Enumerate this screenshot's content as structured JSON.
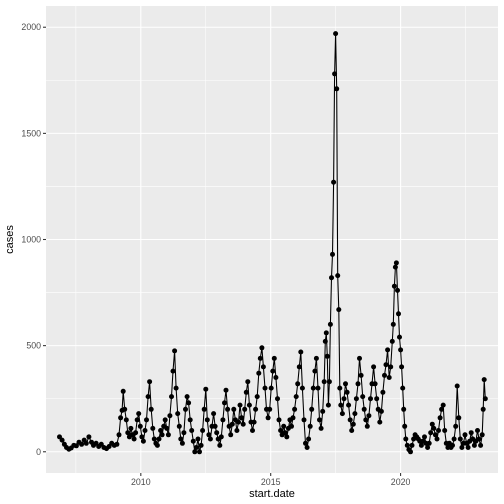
{
  "chart_data": {
    "type": "line",
    "xlabel": "start.date",
    "ylabel": "cases",
    "x_major_ticks": [
      2010,
      2015,
      2020
    ],
    "x_minor_ticks": [
      2007.5,
      2012.5,
      2017.5,
      2022.5
    ],
    "y_major_ticks": [
      0,
      500,
      1000,
      1500,
      2000
    ],
    "y_minor_ticks": [
      250,
      750,
      1250,
      1750
    ],
    "xlim": [
      2006.35,
      2023.75
    ],
    "ylim": [
      -100,
      2100
    ],
    "grid": true,
    "legend": "none",
    "series": [
      {
        "color": "#000000",
        "points": [
          [
            2006.87,
            70
          ],
          [
            2006.97,
            55
          ],
          [
            2007.06,
            35
          ],
          [
            2007.14,
            20
          ],
          [
            2007.23,
            12
          ],
          [
            2007.32,
            18
          ],
          [
            2007.42,
            30
          ],
          [
            2007.52,
            28
          ],
          [
            2007.62,
            45
          ],
          [
            2007.72,
            35
          ],
          [
            2007.82,
            55
          ],
          [
            2007.9,
            40
          ],
          [
            2008.0,
            70
          ],
          [
            2008.1,
            45
          ],
          [
            2008.18,
            30
          ],
          [
            2008.28,
            40
          ],
          [
            2008.38,
            25
          ],
          [
            2008.48,
            35
          ],
          [
            2008.58,
            20
          ],
          [
            2008.68,
            15
          ],
          [
            2008.78,
            25
          ],
          [
            2008.88,
            40
          ],
          [
            2008.98,
            30
          ],
          [
            2009.08,
            35
          ],
          [
            2009.16,
            80
          ],
          [
            2009.22,
            160
          ],
          [
            2009.28,
            195
          ],
          [
            2009.32,
            285
          ],
          [
            2009.38,
            200
          ],
          [
            2009.44,
            150
          ],
          [
            2009.5,
            90
          ],
          [
            2009.56,
            70
          ],
          [
            2009.62,
            110
          ],
          [
            2009.68,
            80
          ],
          [
            2009.74,
            60
          ],
          [
            2009.8,
            90
          ],
          [
            2009.86,
            150
          ],
          [
            2009.92,
            180
          ],
          [
            2009.98,
            120
          ],
          [
            2010.04,
            70
          ],
          [
            2010.1,
            50
          ],
          [
            2010.16,
            100
          ],
          [
            2010.22,
            150
          ],
          [
            2010.28,
            260
          ],
          [
            2010.34,
            330
          ],
          [
            2010.4,
            200
          ],
          [
            2010.46,
            110
          ],
          [
            2010.52,
            60
          ],
          [
            2010.58,
            40
          ],
          [
            2010.64,
            30
          ],
          [
            2010.7,
            60
          ],
          [
            2010.76,
            100
          ],
          [
            2010.82,
            80
          ],
          [
            2010.88,
            120
          ],
          [
            2010.94,
            150
          ],
          [
            2011.0,
            110
          ],
          [
            2011.06,
            80
          ],
          [
            2011.12,
            170
          ],
          [
            2011.18,
            260
          ],
          [
            2011.24,
            380
          ],
          [
            2011.3,
            475
          ],
          [
            2011.36,
            300
          ],
          [
            2011.42,
            180
          ],
          [
            2011.48,
            120
          ],
          [
            2011.54,
            60
          ],
          [
            2011.6,
            40
          ],
          [
            2011.66,
            90
          ],
          [
            2011.72,
            200
          ],
          [
            2011.78,
            260
          ],
          [
            2011.84,
            230
          ],
          [
            2011.9,
            150
          ],
          [
            2011.96,
            100
          ],
          [
            2012.02,
            50
          ],
          [
            2012.08,
            0
          ],
          [
            2012.14,
            20
          ],
          [
            2012.2,
            60
          ],
          [
            2012.26,
            0
          ],
          [
            2012.32,
            30
          ],
          [
            2012.38,
            100
          ],
          [
            2012.44,
            200
          ],
          [
            2012.5,
            295
          ],
          [
            2012.56,
            150
          ],
          [
            2012.62,
            80
          ],
          [
            2012.68,
            60
          ],
          [
            2012.74,
            120
          ],
          [
            2012.8,
            180
          ],
          [
            2012.86,
            120
          ],
          [
            2012.92,
            90
          ],
          [
            2012.98,
            60
          ],
          [
            2013.04,
            30
          ],
          [
            2013.1,
            70
          ],
          [
            2013.16,
            150
          ],
          [
            2013.22,
            230
          ],
          [
            2013.28,
            290
          ],
          [
            2013.34,
            200
          ],
          [
            2013.4,
            120
          ],
          [
            2013.46,
            80
          ],
          [
            2013.52,
            130
          ],
          [
            2013.58,
            200
          ],
          [
            2013.64,
            150
          ],
          [
            2013.7,
            100
          ],
          [
            2013.76,
            140
          ],
          [
            2013.82,
            220
          ],
          [
            2013.88,
            160
          ],
          [
            2013.94,
            130
          ],
          [
            2014.0,
            200
          ],
          [
            2014.06,
            280
          ],
          [
            2014.12,
            330
          ],
          [
            2014.18,
            220
          ],
          [
            2014.24,
            140
          ],
          [
            2014.3,
            100
          ],
          [
            2014.36,
            140
          ],
          [
            2014.42,
            200
          ],
          [
            2014.48,
            260
          ],
          [
            2014.54,
            370
          ],
          [
            2014.6,
            440
          ],
          [
            2014.66,
            490
          ],
          [
            2014.72,
            400
          ],
          [
            2014.78,
            300
          ],
          [
            2014.84,
            200
          ],
          [
            2014.9,
            160
          ],
          [
            2014.96,
            200
          ],
          [
            2015.02,
            300
          ],
          [
            2015.08,
            380
          ],
          [
            2015.14,
            440
          ],
          [
            2015.2,
            350
          ],
          [
            2015.26,
            250
          ],
          [
            2015.32,
            150
          ],
          [
            2015.38,
            100
          ],
          [
            2015.44,
            80
          ],
          [
            2015.5,
            120
          ],
          [
            2015.56,
            90
          ],
          [
            2015.62,
            70
          ],
          [
            2015.68,
            110
          ],
          [
            2015.74,
            150
          ],
          [
            2015.8,
            120
          ],
          [
            2015.86,
            160
          ],
          [
            2015.92,
            200
          ],
          [
            2015.98,
            260
          ],
          [
            2016.04,
            320
          ],
          [
            2016.1,
            400
          ],
          [
            2016.16,
            470
          ],
          [
            2016.22,
            300
          ],
          [
            2016.28,
            150
          ],
          [
            2016.34,
            40
          ],
          [
            2016.4,
            20
          ],
          [
            2016.46,
            60
          ],
          [
            2016.52,
            120
          ],
          [
            2016.58,
            200
          ],
          [
            2016.64,
            300
          ],
          [
            2016.7,
            380
          ],
          [
            2016.76,
            440
          ],
          [
            2016.82,
            300
          ],
          [
            2016.88,
            150
          ],
          [
            2016.94,
            110
          ],
          [
            2017.0,
            190
          ],
          [
            2017.06,
            330
          ],
          [
            2017.1,
            520
          ],
          [
            2017.14,
            560
          ],
          [
            2017.18,
            450
          ],
          [
            2017.22,
            220
          ],
          [
            2017.26,
            330
          ],
          [
            2017.3,
            600
          ],
          [
            2017.34,
            820
          ],
          [
            2017.38,
            930
          ],
          [
            2017.42,
            1270
          ],
          [
            2017.46,
            1780
          ],
          [
            2017.5,
            1970
          ],
          [
            2017.54,
            1710
          ],
          [
            2017.58,
            830
          ],
          [
            2017.62,
            670
          ],
          [
            2017.66,
            300
          ],
          [
            2017.7,
            220
          ],
          [
            2017.76,
            180
          ],
          [
            2017.82,
            250
          ],
          [
            2017.88,
            320
          ],
          [
            2017.94,
            280
          ],
          [
            2018.0,
            220
          ],
          [
            2018.06,
            150
          ],
          [
            2018.12,
            100
          ],
          [
            2018.18,
            130
          ],
          [
            2018.24,
            180
          ],
          [
            2018.3,
            250
          ],
          [
            2018.36,
            320
          ],
          [
            2018.42,
            440
          ],
          [
            2018.48,
            360
          ],
          [
            2018.54,
            260
          ],
          [
            2018.6,
            200
          ],
          [
            2018.66,
            150
          ],
          [
            2018.72,
            120
          ],
          [
            2018.78,
            170
          ],
          [
            2018.84,
            250
          ],
          [
            2018.9,
            320
          ],
          [
            2018.96,
            400
          ],
          [
            2019.02,
            320
          ],
          [
            2019.08,
            250
          ],
          [
            2019.14,
            200
          ],
          [
            2019.2,
            140
          ],
          [
            2019.26,
            190
          ],
          [
            2019.32,
            280
          ],
          [
            2019.38,
            360
          ],
          [
            2019.44,
            410
          ],
          [
            2019.5,
            480
          ],
          [
            2019.56,
            350
          ],
          [
            2019.62,
            400
          ],
          [
            2019.68,
            520
          ],
          [
            2019.72,
            600
          ],
          [
            2019.76,
            780
          ],
          [
            2019.8,
            870
          ],
          [
            2019.84,
            890
          ],
          [
            2019.88,
            760
          ],
          [
            2019.92,
            650
          ],
          [
            2019.96,
            540
          ],
          [
            2020.0,
            480
          ],
          [
            2020.04,
            400
          ],
          [
            2020.08,
            300
          ],
          [
            2020.12,
            200
          ],
          [
            2020.16,
            120
          ],
          [
            2020.2,
            60
          ],
          [
            2020.26,
            30
          ],
          [
            2020.32,
            10
          ],
          [
            2020.38,
            0
          ],
          [
            2020.44,
            30
          ],
          [
            2020.5,
            60
          ],
          [
            2020.56,
            80
          ],
          [
            2020.62,
            70
          ],
          [
            2020.68,
            60
          ],
          [
            2020.74,
            50
          ],
          [
            2020.8,
            30
          ],
          [
            2020.86,
            50
          ],
          [
            2020.92,
            70
          ],
          [
            2020.98,
            40
          ],
          [
            2021.04,
            20
          ],
          [
            2021.1,
            40
          ],
          [
            2021.16,
            90
          ],
          [
            2021.22,
            130
          ],
          [
            2021.28,
            110
          ],
          [
            2021.34,
            80
          ],
          [
            2021.4,
            60
          ],
          [
            2021.46,
            100
          ],
          [
            2021.52,
            160
          ],
          [
            2021.58,
            200
          ],
          [
            2021.64,
            220
          ],
          [
            2021.7,
            100
          ],
          [
            2021.76,
            40
          ],
          [
            2021.82,
            20
          ],
          [
            2021.88,
            40
          ],
          [
            2021.94,
            20
          ],
          [
            2022.0,
            30
          ],
          [
            2022.06,
            60
          ],
          [
            2022.12,
            120
          ],
          [
            2022.18,
            310
          ],
          [
            2022.24,
            160
          ],
          [
            2022.3,
            60
          ],
          [
            2022.36,
            20
          ],
          [
            2022.42,
            40
          ],
          [
            2022.48,
            80
          ],
          [
            2022.54,
            40
          ],
          [
            2022.6,
            20
          ],
          [
            2022.66,
            50
          ],
          [
            2022.72,
            90
          ],
          [
            2022.78,
            60
          ],
          [
            2022.84,
            30
          ],
          [
            2022.9,
            50
          ],
          [
            2022.96,
            100
          ],
          [
            2023.02,
            60
          ],
          [
            2023.08,
            30
          ],
          [
            2023.14,
            80
          ],
          [
            2023.18,
            200
          ],
          [
            2023.22,
            340
          ],
          [
            2023.26,
            250
          ]
        ]
      }
    ]
  }
}
